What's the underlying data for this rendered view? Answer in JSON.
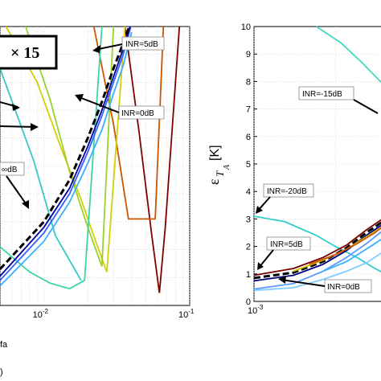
{
  "chart_data": [
    {
      "type": "line",
      "panel": "left",
      "xscale": "log",
      "xlim": [
        0.005,
        0.1
      ],
      "ylim": [
        0,
        10
      ],
      "x_ticks": [
        "10^-2",
        "10^-1"
      ],
      "xlabel": "fa",
      "panel_tag": ")",
      "inset_text": "× 15",
      "grid": true,
      "annotations": [
        "INR=5dB",
        "INR=0dB",
        "∞dB"
      ],
      "series": [
        {
          "color": "#800000",
          "style": "solid",
          "x": [
            0.036,
            0.045,
            0.055,
            0.062,
            0.068,
            0.085
          ],
          "y": [
            10,
            6.2,
            2.5,
            0.45,
            2.8,
            10
          ]
        },
        {
          "color": "#cc5500",
          "style": "solid",
          "x": [
            0.022,
            0.03,
            0.038,
            0.05,
            0.058,
            0.066
          ],
          "y": [
            10,
            6.5,
            3.1,
            3.1,
            3.1,
            10
          ]
        },
        {
          "color": "#d4d000",
          "style": "solid",
          "x": [
            0.0055,
            0.009,
            0.013,
            0.018,
            0.023,
            0.027,
            0.036
          ],
          "y": [
            10,
            8,
            5.7,
            3.8,
            2.2,
            1.2,
            10
          ]
        },
        {
          "color": "#9ad12a",
          "style": "solid",
          "x": [
            0.0075,
            0.011,
            0.015,
            0.02,
            0.025,
            0.03
          ],
          "y": [
            10,
            7.4,
            4.8,
            2.8,
            1.4,
            10
          ]
        },
        {
          "color": "#3cd4a6",
          "style": "solid",
          "x": [
            0.005,
            0.008,
            0.011,
            0.015,
            0.019,
            0.025
          ],
          "y": [
            2.1,
            1.2,
            0.8,
            0.6,
            0.9,
            10
          ]
        },
        {
          "color": "#33c8c8",
          "style": "solid",
          "x": [
            0.005,
            0.0085,
            0.012,
            0.018
          ],
          "y": [
            8.5,
            5.2,
            2.5,
            0.9
          ]
        },
        {
          "color": "#3060ff",
          "style": "solid",
          "x": [
            0.005,
            0.01,
            0.015,
            0.02,
            0.025,
            0.03,
            0.035,
            0.0395
          ],
          "y": [
            0.9,
            2.6,
            4,
            5.5,
            6.8,
            8,
            9,
            10
          ]
        },
        {
          "color": "#0000a0",
          "style": "solid",
          "x": [
            0.005,
            0.01,
            0.015,
            0.02,
            0.025,
            0.03,
            0.035,
            0.039
          ],
          "y": [
            1.05,
            2.8,
            4.2,
            5.7,
            7,
            8.2,
            9.2,
            10
          ]
        },
        {
          "color": "#000000",
          "style": "dashed",
          "x": [
            0.005,
            0.01,
            0.015,
            0.02,
            0.025,
            0.03,
            0.035,
            0.0385
          ],
          "y": [
            1.3,
            3,
            4.5,
            6,
            7.3,
            8.5,
            9.4,
            10
          ]
        },
        {
          "color": "#3ab0ff",
          "style": "solid",
          "x": [
            0.005,
            0.01,
            0.015,
            0.02,
            0.025,
            0.03,
            0.035,
            0.04
          ],
          "y": [
            0.7,
            2.3,
            3.7,
            5.1,
            6.3,
            7.6,
            8.6,
            9.8
          ]
        }
      ]
    },
    {
      "type": "line",
      "panel": "right",
      "xscale": "log",
      "xlim": [
        0.001,
        0.0032
      ],
      "ylim": [
        0,
        10
      ],
      "y_ticks": [
        0,
        1,
        2,
        3,
        4,
        5,
        6,
        7,
        8,
        9,
        10
      ],
      "x_ticks": [
        "10^-3"
      ],
      "ylabel": "ε_T_A [K]",
      "grid": true,
      "annotations": [
        "INR=-15dB",
        "INR=-20dB",
        "INR=5dB",
        "INR=0dB"
      ],
      "series": [
        {
          "color": "#40d8c0",
          "style": "solid",
          "x": [
            0.0017,
            0.0021,
            0.0025,
            0.003
          ],
          "y": [
            10,
            9.4,
            8.7,
            7.9
          ]
        },
        {
          "color": "#33cccc",
          "style": "solid",
          "x": [
            0.001,
            0.0013,
            0.0017,
            0.002,
            0.0024,
            0.0028,
            0.0032
          ],
          "y": [
            3.1,
            2.9,
            2.4,
            2,
            1.6,
            1.2,
            0.9
          ]
        },
        {
          "color": "#80ccff",
          "style": "solid",
          "x": [
            0.001,
            0.0014,
            0.0018,
            0.0022,
            0.0026,
            0.003
          ],
          "y": [
            0.4,
            0.5,
            0.8,
            1.1,
            1.4,
            1.8
          ]
        },
        {
          "color": "#5a9aff",
          "style": "solid",
          "x": [
            0.001,
            0.0014,
            0.0018,
            0.0022,
            0.0026,
            0.0032
          ],
          "y": [
            0.45,
            0.65,
            1.1,
            1.6,
            2.1,
            2.8
          ]
        },
        {
          "color": "#000080",
          "style": "solid",
          "x": [
            0.001,
            0.0014,
            0.0018,
            0.0022,
            0.0026,
            0.0032
          ],
          "y": [
            0.75,
            0.95,
            1.35,
            1.85,
            2.4,
            3.0
          ]
        },
        {
          "color": "#000000",
          "style": "dashed",
          "x": [
            0.001,
            0.0014,
            0.0018,
            0.0022,
            0.0026,
            0.0032
          ],
          "y": [
            0.85,
            1.05,
            1.45,
            1.95,
            2.5,
            3.1
          ]
        },
        {
          "color": "#7a0000",
          "style": "solid",
          "x": [
            0.001,
            0.0014,
            0.0018,
            0.0022,
            0.0026,
            0.0032
          ],
          "y": [
            0.95,
            1.2,
            1.6,
            2.05,
            2.6,
            3.2
          ]
        },
        {
          "color": "#d4c000",
          "style": "solid",
          "x": [
            0.0014,
            0.0018,
            0.0022,
            0.0026,
            0.0032
          ],
          "y": [
            1.1,
            1.5,
            1.9,
            2.35,
            2.9
          ]
        },
        {
          "color": "#cc5500",
          "style": "solid",
          "x": [
            0.0016,
            0.002,
            0.0024,
            0.0028,
            0.0032
          ],
          "y": [
            1.35,
            1.7,
            2.1,
            2.5,
            2.95
          ]
        },
        {
          "color": "#3ab0ff",
          "style": "solid",
          "x": [
            0.0018,
            0.0022,
            0.0026,
            0.003
          ],
          "y": [
            1.1,
            1.45,
            1.9,
            2.3
          ]
        }
      ]
    }
  ]
}
